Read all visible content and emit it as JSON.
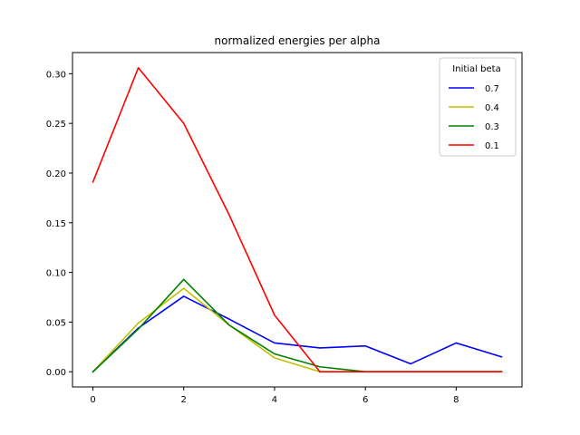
{
  "chart_data": {
    "type": "line",
    "title": "normalized energies per alpha",
    "xlabel": "",
    "ylabel": "",
    "xlim": [
      -0.45,
      9.45
    ],
    "ylim": [
      -0.0153,
      0.3213
    ],
    "x_ticks": [
      0,
      2,
      4,
      6,
      8
    ],
    "x_tick_labels": [
      "0",
      "2",
      "4",
      "6",
      "8"
    ],
    "y_ticks": [
      0.0,
      0.05,
      0.1,
      0.15,
      0.2,
      0.25,
      0.3
    ],
    "y_tick_labels": [
      "0.00",
      "0.05",
      "0.10",
      "0.15",
      "0.20",
      "0.25",
      "0.30"
    ],
    "grid": false,
    "legend": {
      "title": "Initial beta",
      "placement": "top-right"
    },
    "x": [
      0,
      1,
      2,
      3,
      4,
      5,
      6,
      7,
      8,
      9
    ],
    "series": [
      {
        "name": "0.7",
        "color": "#0000ff",
        "values": [
          0.0,
          0.044,
          0.076,
          0.053,
          0.029,
          0.024,
          0.026,
          0.008,
          0.029,
          0.015
        ]
      },
      {
        "name": "0.4",
        "color": "#bfbf00",
        "values": [
          0.0,
          0.049,
          0.084,
          0.047,
          0.014,
          0.0,
          0.0,
          0.0,
          0.0,
          0.0
        ]
      },
      {
        "name": "0.3",
        "color": "#008000",
        "values": [
          0.0,
          0.043,
          0.093,
          0.047,
          0.018,
          0.005,
          0.0,
          0.0,
          0.0,
          0.0
        ]
      },
      {
        "name": "0.1",
        "color": "#ff0000",
        "values": [
          0.191,
          0.306,
          0.25,
          0.158,
          0.057,
          0.0,
          0.0,
          0.0,
          0.0,
          0.0
        ]
      }
    ]
  }
}
